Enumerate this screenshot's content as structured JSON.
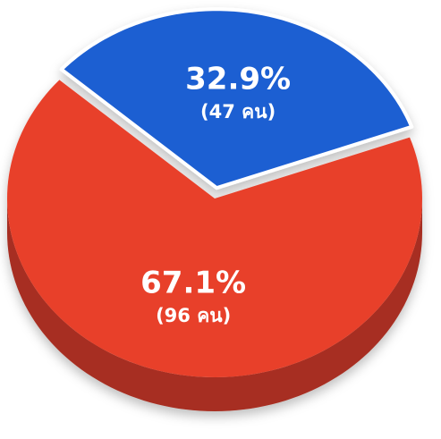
{
  "chart_data": {
    "type": "pie",
    "values": [
      67.1,
      32.9
    ],
    "value_labels": [
      "67.1%",
      "32.9%"
    ],
    "annotations": [
      "(96 คน)",
      "(47 คน)"
    ],
    "colors": [
      "#e8412c",
      "#1f5fd2"
    ]
  }
}
